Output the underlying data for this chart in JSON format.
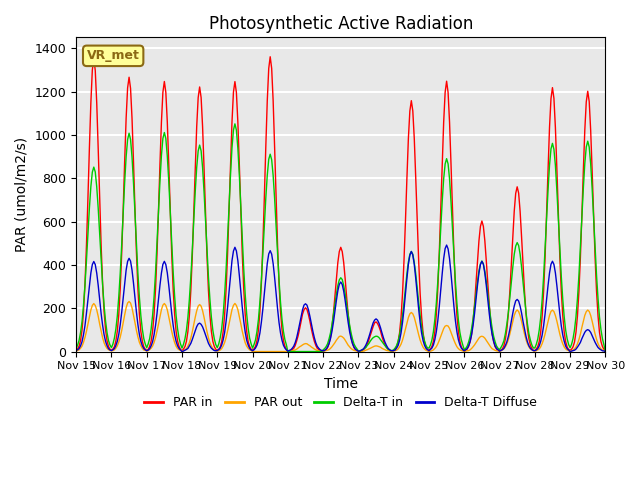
{
  "title": "Photosynthetic Active Radiation",
  "ylabel": "PAR (umol/m2/s)",
  "xlabel": "Time",
  "xlim_start": 0,
  "xlim_end": 360,
  "ylim": [
    0,
    1450
  ],
  "yticks": [
    0,
    200,
    400,
    600,
    800,
    1000,
    1200,
    1400
  ],
  "background_color": "#e8e8e8",
  "plot_bg_color": "#e8e8e8",
  "grid_color": "white",
  "annotation_text": "VR_met",
  "annotation_bg": "#ffff99",
  "annotation_border": "#8B6914",
  "colors": {
    "PAR in": "#ff0000",
    "PAR out": "#ffa500",
    "Delta-T in": "#00cc00",
    "Delta-T Diffuse": "#0000cc"
  },
  "linewidth": 1.0,
  "legend_labels": [
    "PAR in",
    "PAR out",
    "Delta-T in",
    "Delta-T Diffuse"
  ],
  "xtick_labels": [
    "Nov 15",
    "Nov 16",
    "Nov 17",
    "Nov 18",
    "Nov 19",
    "Nov 20",
    "Nov 21",
    "Nov 22",
    "Nov 23",
    "Nov 24",
    "Nov 25",
    "Nov 26",
    "Nov 27",
    "Nov 28",
    "Nov 29",
    "Nov 30"
  ],
  "xtick_positions": [
    0,
    24,
    48,
    72,
    96,
    120,
    144,
    168,
    192,
    216,
    240,
    264,
    288,
    312,
    336,
    360
  ],
  "daily_peaks_par_in": [
    1350,
    1265,
    1245,
    1220,
    1245,
    1360,
    200,
    480,
    135,
    1155,
    1245,
    600,
    760,
    1215,
    1200,
    0
  ],
  "daily_peaks_par_out": [
    220,
    230,
    220,
    215,
    220,
    0,
    35,
    70,
    25,
    180,
    120,
    70,
    190,
    190,
    190,
    0
  ],
  "daily_peaks_delta_t_in": [
    850,
    1005,
    1010,
    950,
    1050,
    910,
    0,
    340,
    70,
    460,
    890,
    415,
    500,
    960,
    970,
    0
  ],
  "daily_peaks_delta_t_diff": [
    415,
    430,
    415,
    130,
    480,
    465,
    220,
    320,
    150,
    460,
    490,
    415,
    240,
    415,
    100,
    0
  ]
}
